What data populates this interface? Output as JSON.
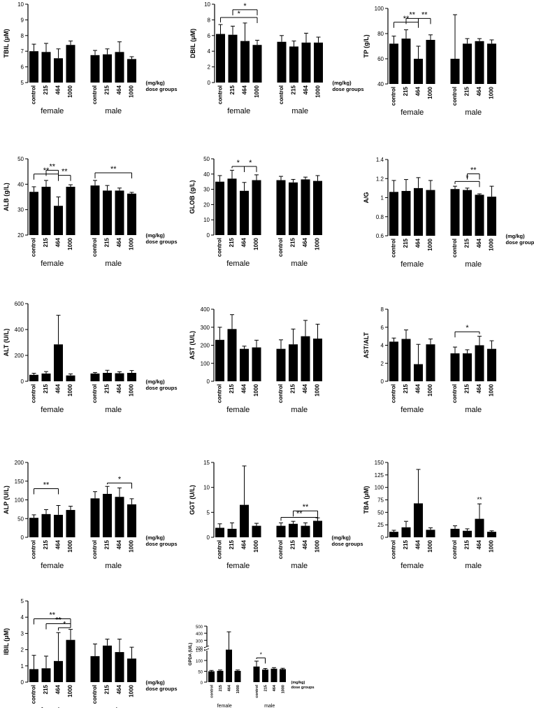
{
  "dose_unit_label": "(mg/kg)",
  "dose_axis_label": "dose groups",
  "chart_data": [
    {
      "type": "bar",
      "ylabel": "TBIL (μM)",
      "ylim": [
        5,
        10
      ],
      "yticks": [
        5,
        6,
        7,
        8,
        9,
        10
      ],
      "groups": [
        "female",
        "male"
      ],
      "categories": [
        "control",
        "215",
        "464",
        "1000"
      ],
      "values": [
        [
          7.0,
          6.95,
          6.55,
          7.4
        ],
        [
          6.75,
          6.8,
          6.95,
          6.5
        ]
      ],
      "errors": [
        [
          0.45,
          0.55,
          0.6,
          0.25
        ],
        [
          0.3,
          0.35,
          0.65,
          0.15
        ]
      ],
      "brackets": [],
      "stars": []
    },
    {
      "type": "bar",
      "ylabel": "DBIL (μM)",
      "ylim": [
        0,
        10
      ],
      "yticks": [
        0,
        2,
        4,
        6,
        8,
        10
      ],
      "groups": [
        "female",
        "male"
      ],
      "categories": [
        "control",
        "215",
        "464",
        "1000"
      ],
      "values": [
        [
          6.2,
          6.1,
          5.3,
          4.8
        ],
        [
          5.2,
          4.6,
          5.1,
          5.1
        ]
      ],
      "errors": [
        [
          1.2,
          1.1,
          2.3,
          0.6
        ],
        [
          0.8,
          0.7,
          1.2,
          0.7
        ]
      ],
      "brackets": [
        {
          "g": 0,
          "from": 0,
          "to": 3,
          "label": "*",
          "y": 8.3,
          "spine": true
        },
        {
          "g": 0,
          "from": 1,
          "to": 3,
          "label": "*",
          "y": 9.3
        }
      ],
      "stars": []
    },
    {
      "type": "bar",
      "ylabel": "TP (g/L)",
      "ylim": [
        40,
        100
      ],
      "yticks": [
        40,
        60,
        80,
        100
      ],
      "groups": [
        "female",
        "male"
      ],
      "categories": [
        "control",
        "215",
        "464",
        "1000"
      ],
      "values": [
        [
          72,
          76,
          60,
          75
        ],
        [
          60,
          72,
          74,
          72
        ]
      ],
      "errors": [
        [
          6,
          7,
          10,
          4
        ],
        [
          35,
          4,
          2,
          3
        ]
      ],
      "brackets": [
        {
          "g": 0,
          "from": 0,
          "to": 2,
          "label": "**",
          "y": 89,
          "spine": true
        },
        {
          "g": 0,
          "from": 1,
          "to": 2,
          "label": "**",
          "y": 92
        },
        {
          "g": 0,
          "from": 2,
          "to": 3,
          "label": "**",
          "y": 92
        }
      ],
      "stars": []
    },
    {
      "type": "bar",
      "ylabel": "ALB (g/L)",
      "ylim": [
        20,
        50
      ],
      "yticks": [
        20,
        30,
        40,
        50
      ],
      "groups": [
        "female",
        "male"
      ],
      "categories": [
        "control",
        "215",
        "464",
        "1000"
      ],
      "values": [
        [
          37,
          39,
          31.5,
          39
        ],
        [
          39.5,
          37.5,
          37.5,
          36.3
        ]
      ],
      "errors": [
        [
          2,
          2.5,
          3.5,
          0.8
        ],
        [
          2,
          2,
          1,
          0.5
        ]
      ],
      "brackets": [
        {
          "g": 0,
          "from": 0,
          "to": 2,
          "label": "**",
          "y": 44,
          "spine": true
        },
        {
          "g": 0,
          "from": 1,
          "to": 2,
          "label": "**",
          "y": 45.5
        },
        {
          "g": 0,
          "from": 2,
          "to": 3,
          "label": "**",
          "y": 43.5
        },
        {
          "g": 1,
          "from": 0,
          "to": 3,
          "label": "**",
          "y": 44.5
        }
      ],
      "stars": []
    },
    {
      "type": "bar",
      "ylabel": "GLOB (g/L)",
      "ylim": [
        0,
        50
      ],
      "yticks": [
        0,
        10,
        20,
        30,
        40,
        50
      ],
      "groups": [
        "female",
        "male"
      ],
      "categories": [
        "control",
        "215",
        "464",
        "1000"
      ],
      "values": [
        [
          35,
          37,
          29,
          36
        ],
        [
          36,
          34.5,
          36.5,
          35.5
        ]
      ],
      "errors": [
        [
          4,
          5.5,
          5.5,
          3.5
        ],
        [
          2.5,
          2,
          1.5,
          3.5
        ]
      ],
      "brackets": [
        {
          "g": 0,
          "from": 1,
          "to": 2,
          "label": "*",
          "y": 45
        },
        {
          "g": 0,
          "from": 2,
          "to": 3,
          "label": "*",
          "y": 45
        }
      ],
      "stars": []
    },
    {
      "type": "bar",
      "ylabel": "A/G",
      "ylim": [
        0.6,
        1.4
      ],
      "yticks": [
        0.6,
        0.8,
        1.0,
        1.2,
        1.4
      ],
      "groups": [
        "female",
        "male"
      ],
      "categories": [
        "control",
        "215",
        "464",
        "1000"
      ],
      "values": [
        [
          1.06,
          1.07,
          1.1,
          1.08
        ],
        [
          1.09,
          1.08,
          1.03,
          1.01
        ]
      ],
      "errors": [
        [
          0.12,
          0.12,
          0.11,
          0.1
        ],
        [
          0.03,
          0.02,
          0.01,
          0.11
        ]
      ],
      "brackets": [
        {
          "g": 1,
          "from": 0,
          "to": 2,
          "label": "*",
          "y": 1.17,
          "spine": true
        },
        {
          "g": 1,
          "from": 1,
          "to": 2,
          "label": "**",
          "y": 1.25
        }
      ],
      "stars": []
    },
    {
      "type": "bar",
      "ylabel": "ALT (U/L)",
      "ylim": [
        0,
        600
      ],
      "yticks": [
        0,
        200,
        400,
        600
      ],
      "groups": [
        "female",
        "male"
      ],
      "categories": [
        "control",
        "215",
        "464",
        "1000"
      ],
      "values": [
        [
          50,
          60,
          285,
          45
        ],
        [
          60,
          65,
          62,
          65
        ]
      ],
      "errors": [
        [
          12,
          15,
          225,
          12
        ],
        [
          8,
          20,
          12,
          18
        ]
      ],
      "brackets": [],
      "stars": []
    },
    {
      "type": "bar",
      "ylabel": "AST (U/L)",
      "ylim": [
        0,
        400
      ],
      "yticks": [
        0,
        100,
        200,
        300,
        400
      ],
      "groups": [
        "female",
        "male"
      ],
      "categories": [
        "control",
        "215",
        "464",
        "1000"
      ],
      "values": [
        [
          230,
          290,
          180,
          188
        ],
        [
          180,
          205,
          250,
          237
        ]
      ],
      "errors": [
        [
          70,
          80,
          15,
          40
        ],
        [
          50,
          85,
          88,
          80
        ]
      ],
      "brackets": [],
      "stars": []
    },
    {
      "type": "bar",
      "ylabel": "AST/ALT",
      "ylim": [
        0,
        8
      ],
      "yticks": [
        0,
        2,
        4,
        6,
        8
      ],
      "groups": [
        "female",
        "male"
      ],
      "categories": [
        "control",
        "215",
        "464",
        "1000"
      ],
      "values": [
        [
          4.4,
          4.7,
          1.9,
          4.1
        ],
        [
          3.1,
          3.1,
          4.0,
          3.6
        ]
      ],
      "errors": [
        [
          0.4,
          1.0,
          2.2,
          0.6
        ],
        [
          0.7,
          0.4,
          1.0,
          0.9
        ]
      ],
      "brackets": [
        {
          "g": 1,
          "from": 0,
          "to": 2,
          "label": "*",
          "y": 5.5
        }
      ],
      "stars": []
    },
    {
      "type": "bar",
      "ylabel": "ALP (U/L)",
      "ylim": [
        0,
        200
      ],
      "yticks": [
        0,
        50,
        100,
        150,
        200
      ],
      "groups": [
        "female",
        "male"
      ],
      "categories": [
        "control",
        "215",
        "464",
        "1000"
      ],
      "values": [
        [
          52,
          62,
          60,
          73
        ],
        [
          104,
          116,
          108,
          88
        ]
      ],
      "errors": [
        [
          8,
          12,
          25,
          10
        ],
        [
          18,
          20,
          24,
          15
        ]
      ],
      "brackets": [
        {
          "g": 0,
          "from": 0,
          "to": 2,
          "label": "**",
          "y": 130
        },
        {
          "g": 1,
          "from": 1,
          "to": 3,
          "label": "*",
          "y": 145
        }
      ],
      "stars": []
    },
    {
      "type": "bar",
      "ylabel": "GGT (U/L)",
      "ylim": [
        0,
        15
      ],
      "yticks": [
        0,
        5,
        10,
        15
      ],
      "groups": [
        "female",
        "male"
      ],
      "categories": [
        "control",
        "215",
        "464",
        "1000"
      ],
      "values": [
        [
          1.9,
          1.7,
          6.5,
          2.3
        ],
        [
          2.3,
          2.7,
          2.3,
          3.3
        ]
      ],
      "errors": [
        [
          0.8,
          1.2,
          7.8,
          0.5
        ],
        [
          0.6,
          0.5,
          0.6,
          0.6
        ]
      ],
      "brackets": [
        {
          "g": 1,
          "from": 0,
          "to": 3,
          "label": "**",
          "y": 4.0
        },
        {
          "g": 1,
          "from": 1,
          "to": 3,
          "label": "**",
          "y": 5.3
        }
      ],
      "stars": []
    },
    {
      "type": "bar",
      "ylabel": "TBA (μM)",
      "ylim": [
        0,
        150
      ],
      "yticks": [
        0,
        25,
        50,
        75,
        100,
        125,
        150
      ],
      "groups": [
        "female",
        "male"
      ],
      "categories": [
        "control",
        "215",
        "464",
        "1000"
      ],
      "values": [
        [
          11,
          20,
          68,
          15
        ],
        [
          17,
          13,
          37,
          11
        ]
      ],
      "errors": [
        [
          3,
          12,
          68,
          4
        ],
        [
          6,
          4,
          30,
          2
        ]
      ],
      "brackets": [],
      "stars": [
        {
          "g": 1,
          "i": 2,
          "label": "**"
        }
      ]
    },
    {
      "type": "bar",
      "ylabel": "IBIL (μM)",
      "ylim": [
        0,
        5
      ],
      "yticks": [
        0,
        1,
        2,
        3,
        4,
        5
      ],
      "groups": [
        "female",
        "male"
      ],
      "categories": [
        "control",
        "215",
        "464",
        "1000"
      ],
      "values": [
        [
          0.8,
          0.85,
          1.3,
          2.6
        ],
        [
          1.6,
          2.25,
          1.85,
          1.45
        ]
      ],
      "errors": [
        [
          0.85,
          0.75,
          1.75,
          0.65
        ],
        [
          0.75,
          0.4,
          0.8,
          0.7
        ]
      ],
      "brackets": [
        {
          "g": 0,
          "from": 0,
          "to": 3,
          "label": "**",
          "y": 3.9,
          "spine": true
        },
        {
          "g": 0,
          "from": 1,
          "to": 3,
          "label": "**",
          "y": 3.6,
          "spine": true
        },
        {
          "g": 0,
          "from": 2,
          "to": 3,
          "label": "*",
          "y": 3.35
        }
      ],
      "stars": []
    },
    {
      "type": "bar",
      "ylabel": "GPDA (U/L)",
      "ylim": [
        0,
        500
      ],
      "yticks": [
        0,
        50,
        100,
        150,
        200,
        300,
        400,
        500
      ],
      "groups": [
        "female",
        "male"
      ],
      "categories": [
        "control",
        "215",
        "464",
        "1000"
      ],
      "values": [
        [
          50,
          52,
          150,
          52
        ],
        [
          72,
          58,
          62,
          60
        ]
      ],
      "errors": [
        [
          4,
          4,
          270,
          4
        ],
        [
          25,
          5,
          5,
          4
        ]
      ],
      "brackets": [
        {
          "g": 1,
          "from": 0,
          "to": 1,
          "label": "*",
          "y": 112
        }
      ],
      "stars": [],
      "broken_axis": true
    }
  ]
}
